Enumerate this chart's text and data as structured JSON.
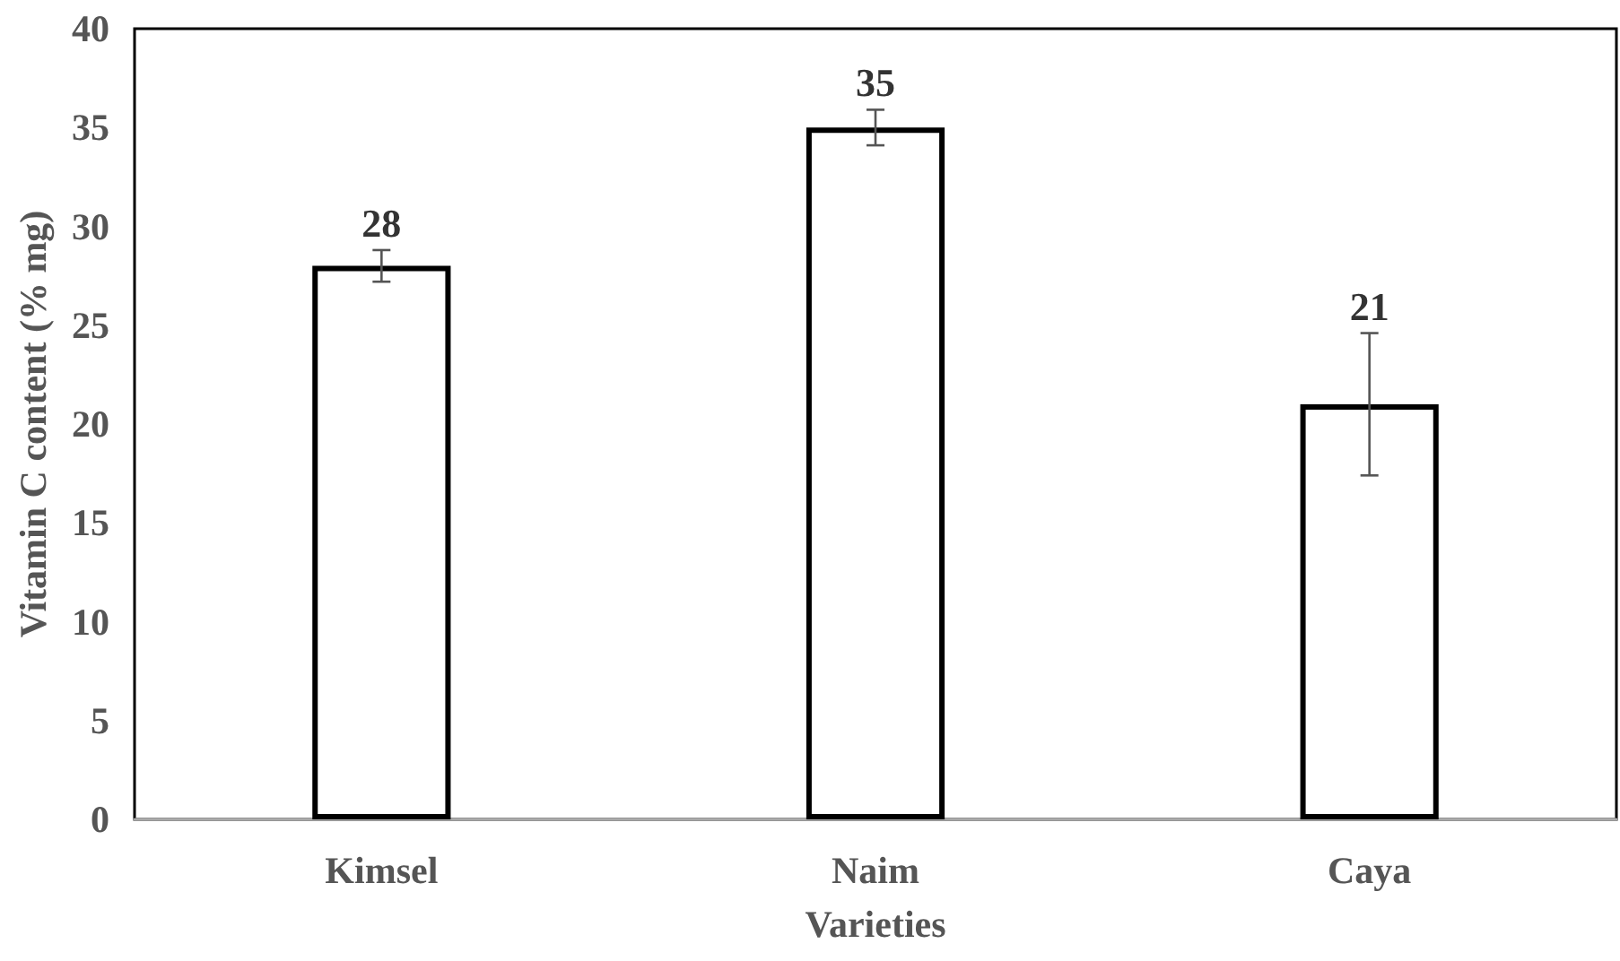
{
  "chart_data": {
    "type": "bar",
    "xlabel": "Varieties",
    "ylabel": "Vitamin C content (% mg)",
    "categories": [
      "Kimsel",
      "Naim",
      "Caya"
    ],
    "values": [
      28,
      35,
      21
    ],
    "errors": [
      0.8,
      0.9,
      3.6
    ],
    "color": "#ffffff",
    "data_labels": true,
    "ylim": [
      0,
      40
    ],
    "yticks": [
      0,
      5,
      10,
      15,
      20,
      25,
      30,
      35,
      40
    ],
    "grid": false
  }
}
